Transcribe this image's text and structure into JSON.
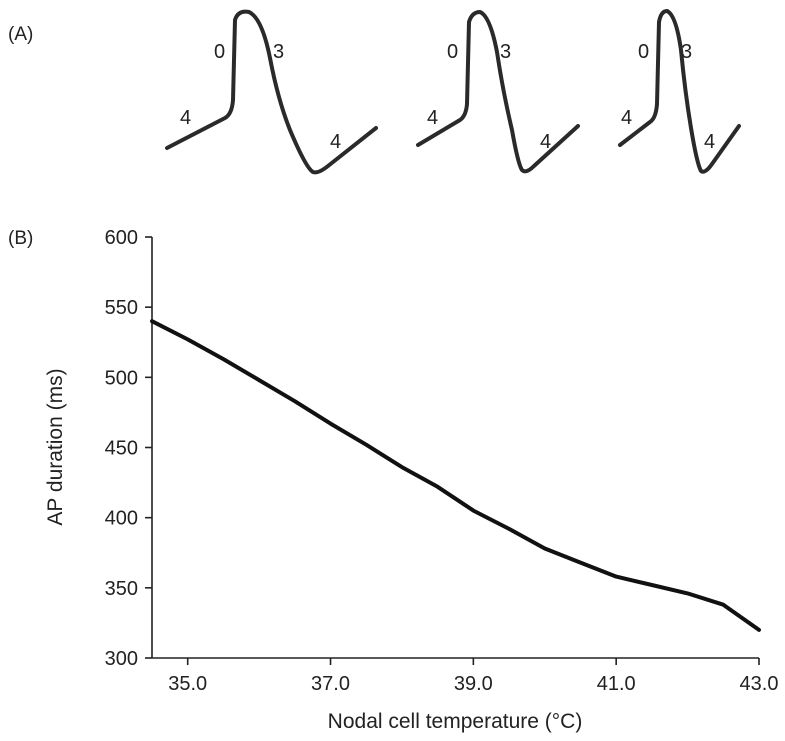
{
  "panel_a": {
    "label": "(A)",
    "traces": [
      {
        "phase_labels": [
          "4",
          "0",
          "3",
          "4"
        ]
      },
      {
        "phase_labels": [
          "4",
          "0",
          "3",
          "4"
        ]
      },
      {
        "phase_labels": [
          "4",
          "0",
          "3",
          "4"
        ]
      }
    ]
  },
  "panel_b": {
    "label": "(B)"
  },
  "chart_data": {
    "type": "line",
    "title": "",
    "xlabel": "Nodal cell temperature (°C)",
    "ylabel": "AP duration (ms)",
    "xlim": [
      34.5,
      43.0
    ],
    "ylim": [
      300,
      600
    ],
    "xticks": [
      35.0,
      37.0,
      39.0,
      41.0,
      43.0
    ],
    "xtick_labels": [
      "35.0",
      "37.0",
      "39.0",
      "41.0",
      "43.0"
    ],
    "yticks": [
      300,
      350,
      400,
      450,
      500,
      550,
      600
    ],
    "ytick_labels": [
      "300",
      "350",
      "400",
      "450",
      "500",
      "550",
      "600"
    ],
    "grid": false,
    "series": [
      {
        "x": [
          34.5,
          35.0,
          35.5,
          36.0,
          36.5,
          37.0,
          37.5,
          38.0,
          38.5,
          39.0,
          39.5,
          40.0,
          40.5,
          41.0,
          41.5,
          42.0,
          42.5,
          43.0
        ],
        "values": [
          540,
          527,
          513,
          498,
          483,
          467,
          452,
          436,
          422,
          405,
          392,
          378,
          368,
          358,
          352,
          346,
          338,
          320
        ],
        "color": "#111111"
      }
    ]
  }
}
